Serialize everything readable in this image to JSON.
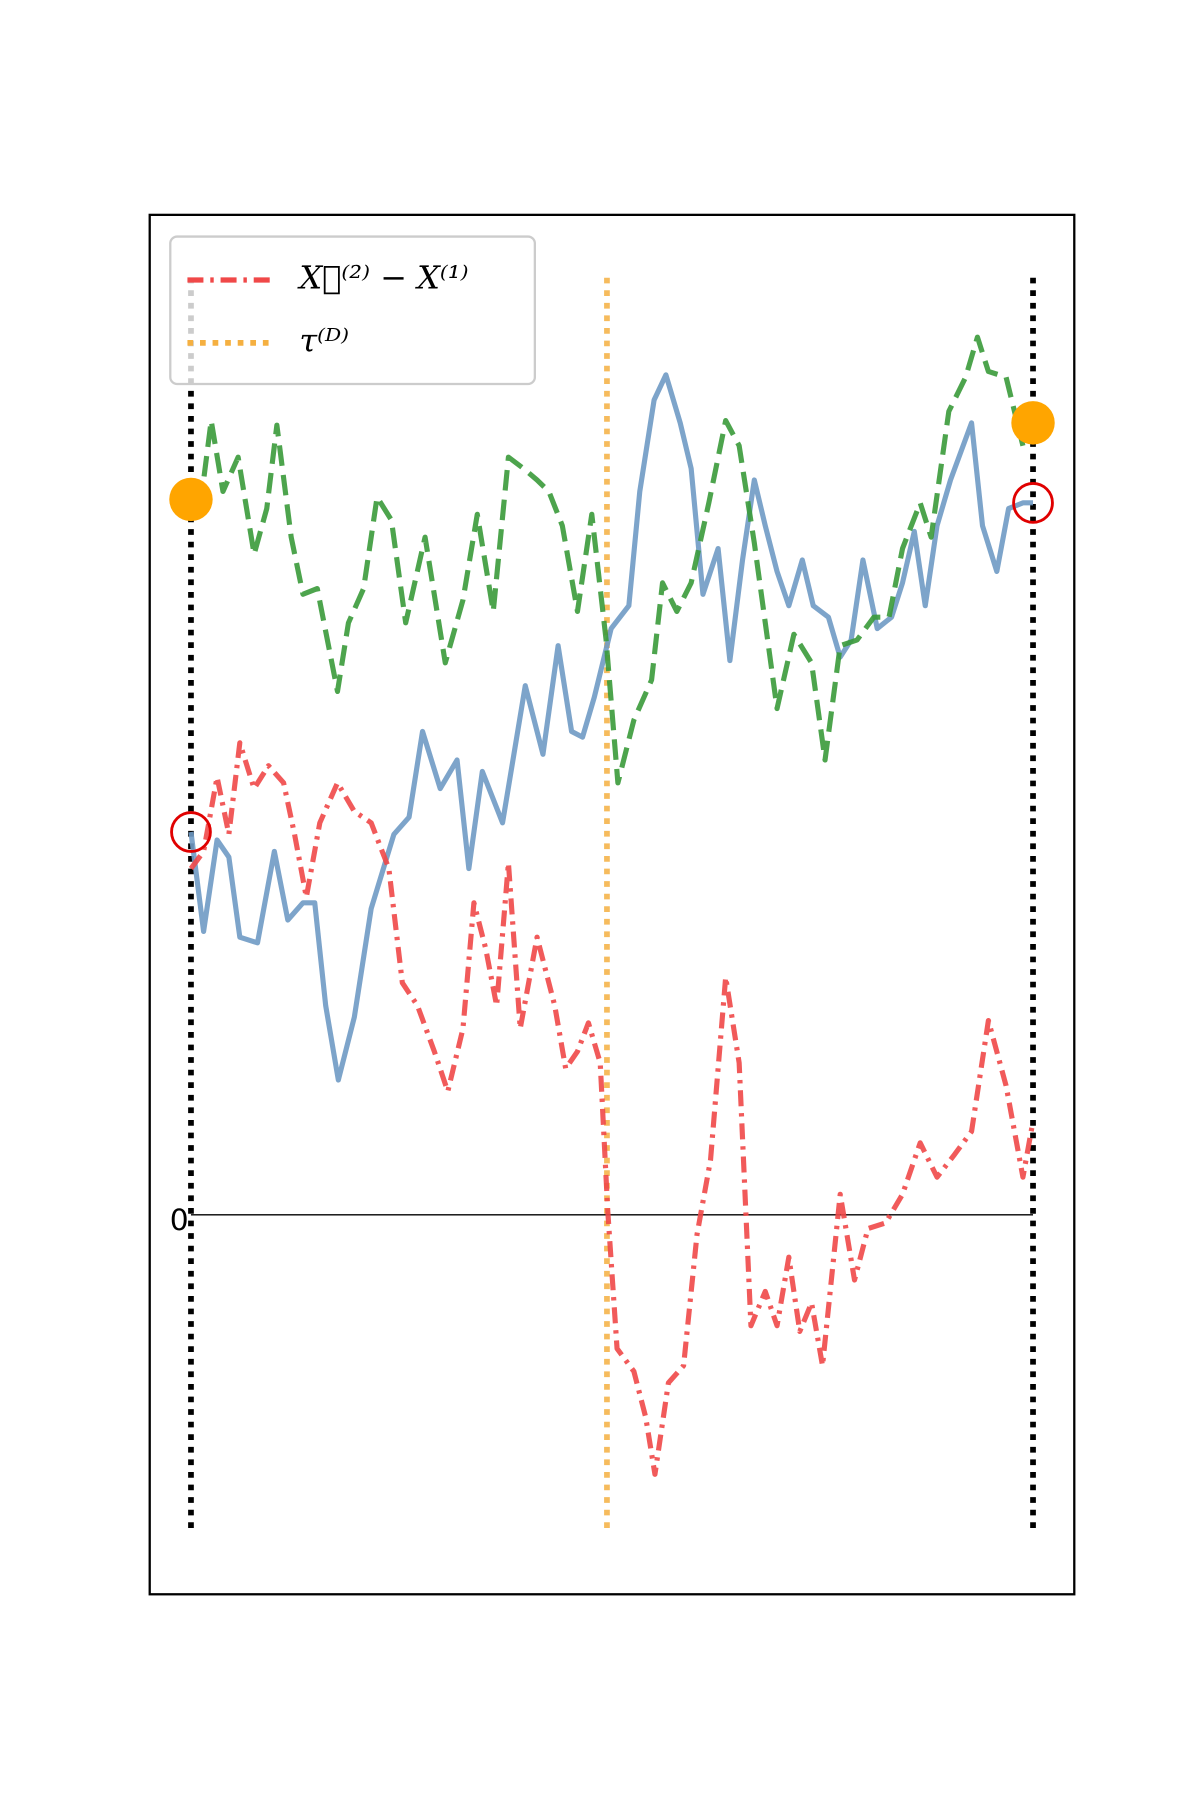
{
  "chart_data": {
    "type": "line",
    "xlim": [
      -0.049,
      1.049
    ],
    "ylim": [
      -3.32,
      8.75
    ],
    "yticks": [
      0
    ],
    "legend": "upper left",
    "series": [
      {
        "color": "#6f9ac4",
        "style": "solid",
        "x": [
          0,
          0.015,
          0.031,
          0.045,
          0.058,
          0.079,
          0.099,
          0.115,
          0.133,
          0.147,
          0.16,
          0.175,
          0.194,
          0.214,
          0.241,
          0.259,
          0.275,
          0.296,
          0.316,
          0.33,
          0.346,
          0.37,
          0.397,
          0.418,
          0.436,
          0.452,
          0.465,
          0.479,
          0.499,
          0.52,
          0.533,
          0.55,
          0.564,
          0.581,
          0.594,
          0.608,
          0.626,
          0.64,
          0.655,
          0.669,
          0.682,
          0.696,
          0.71,
          0.726,
          0.739,
          0.757,
          0.771,
          0.784,
          0.798,
          0.815,
          0.832,
          0.845,
          0.859,
          0.872,
          0.886,
          0.902,
          0.927,
          0.94,
          0.957,
          0.971,
          0.988,
          1
        ],
        "values": [
          3.35,
          2.48,
          3.28,
          3.13,
          2.43,
          2.38,
          3.18,
          2.58,
          2.73,
          2.73,
          1.83,
          1.18,
          1.73,
          2.68,
          3.33,
          3.48,
          4.23,
          3.73,
          3.98,
          3.03,
          3.88,
          3.43,
          4.63,
          4.03,
          4.98,
          4.23,
          4.18,
          4.53,
          5.13,
          5.33,
          6.33,
          7.13,
          7.35,
          6.93,
          6.53,
          5.43,
          5.83,
          4.85,
          5.73,
          6.43,
          6.03,
          5.63,
          5.33,
          5.73,
          5.33,
          5.23,
          4.88,
          5.03,
          5.73,
          5.13,
          5.23,
          5.53,
          5.98,
          5.33,
          6.03,
          6.43,
          6.93,
          6.03,
          5.63,
          6.18,
          6.23,
          6.23
        ]
      },
      {
        "color": "#3a9a3a",
        "style": "dashed",
        "x": [
          0,
          0.015,
          0.024,
          0.038,
          0.056,
          0.075,
          0.09,
          0.102,
          0.119,
          0.133,
          0.15,
          0.174,
          0.187,
          0.205,
          0.221,
          0.238,
          0.255,
          0.278,
          0.302,
          0.323,
          0.34,
          0.359,
          0.377,
          0.395,
          0.411,
          0.425,
          0.441,
          0.459,
          0.476,
          0.493,
          0.507,
          0.526,
          0.547,
          0.56,
          0.577,
          0.594,
          0.615,
          0.635,
          0.651,
          0.669,
          0.696,
          0.716,
          0.737,
          0.753,
          0.771,
          0.791,
          0.811,
          0.829,
          0.845,
          0.866,
          0.879,
          0.9,
          0.92,
          0.934,
          0.947,
          0.968,
          0.988
        ],
        "values": [
          6.23,
          6.43,
          6.95,
          6.33,
          6.63,
          5.78,
          6.18,
          6.91,
          5.93,
          5.43,
          5.48,
          4.58,
          5.18,
          5.48,
          6.28,
          6.08,
          5.18,
          5.93,
          4.83,
          5.38,
          6.13,
          5.28,
          6.63,
          6.53,
          6.43,
          6.33,
          6.03,
          5.28,
          6.13,
          5.03,
          3.78,
          4.33,
          4.68,
          5.53,
          5.28,
          5.53,
          6.23,
          6.95,
          6.73,
          5.88,
          4.43,
          5.08,
          4.83,
          3.98,
          4.98,
          5.03,
          5.23,
          5.23,
          5.83,
          6.23,
          5.93,
          7.03,
          7.33,
          7.68,
          7.38,
          7.33,
          6.73
        ]
      },
      {
        "name": "X⃖⁽²⁾ − X⁽¹⁾",
        "color": "#f04848",
        "style": "dashdot",
        "x": [
          0,
          0.015,
          0.031,
          0.045,
          0.058,
          0.075,
          0.092,
          0.11,
          0.123,
          0.137,
          0.153,
          0.174,
          0.194,
          0.214,
          0.235,
          0.251,
          0.269,
          0.289,
          0.305,
          0.323,
          0.336,
          0.35,
          0.363,
          0.377,
          0.391,
          0.411,
          0.432,
          0.445,
          0.459,
          0.472,
          0.486,
          0.495,
          0.506,
          0.526,
          0.54,
          0.551,
          0.567,
          0.585,
          0.601,
          0.617,
          0.635,
          0.651,
          0.665,
          0.682,
          0.696,
          0.71,
          0.723,
          0.737,
          0.75,
          0.771,
          0.788,
          0.804,
          0.825,
          0.845,
          0.866,
          0.886,
          0.907,
          0.927,
          0.947,
          0.968,
          0.988,
          0.999
        ],
        "values": [
          3.03,
          3.18,
          3.83,
          3.33,
          4.13,
          3.73,
          3.93,
          3.78,
          3.33,
          2.78,
          3.43,
          3.78,
          3.53,
          3.43,
          3.03,
          2.03,
          1.83,
          1.43,
          1.08,
          1.63,
          2.73,
          2.33,
          1.83,
          3.08,
          1.63,
          2.43,
          1.83,
          1.28,
          1.43,
          1.68,
          1.33,
          0.03,
          -1.17,
          -1.37,
          -1.77,
          -2.27,
          -1.47,
          -1.32,
          -0.17,
          0.48,
          2.08,
          1.33,
          -0.97,
          -0.67,
          -0.97,
          -0.37,
          -1.02,
          -0.77,
          -1.32,
          0.18,
          -0.57,
          -0.12,
          -0.07,
          0.18,
          0.63,
          0.33,
          0.53,
          0.73,
          1.7,
          1.13,
          0.33,
          0.78
        ]
      }
    ],
    "vlines": [
      {
        "x": 0,
        "color": "#000000"
      },
      {
        "x": 0.494,
        "color": "#f5b041",
        "name": "τ⁽ᴰ⁾"
      },
      {
        "x": 1,
        "color": "#000000"
      }
    ],
    "points": [
      {
        "x": 0,
        "y": 6.26,
        "color": "#ffa500",
        "style": "filled"
      },
      {
        "x": 1,
        "y": 6.93,
        "color": "#ffa500",
        "style": "filled"
      },
      {
        "x": 0,
        "y": 3.35,
        "color": "#e00000",
        "style": "hollow"
      },
      {
        "x": 1,
        "y": 6.23,
        "color": "#e00000",
        "style": "hollow"
      }
    ]
  }
}
